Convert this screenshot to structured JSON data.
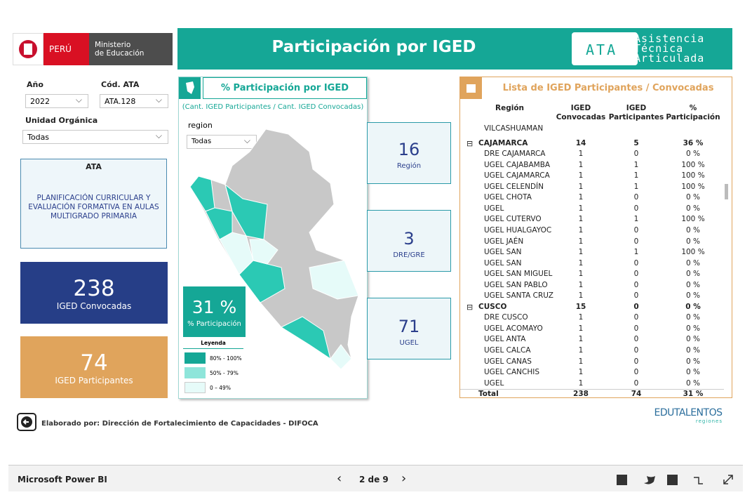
{
  "header": {
    "country": "PERÚ",
    "ministry": [
      "Ministerio",
      "de Educación"
    ],
    "title": "Participación por IGED",
    "ata_logo": "ATA",
    "ata_words": [
      "Asistencia",
      "Técnica",
      "Articulada"
    ]
  },
  "filters": [
    {
      "label": "Año",
      "value": "2022"
    },
    {
      "label": "Cód. ATA",
      "value": "ATA.128"
    },
    {
      "label": "Unidad Orgánica",
      "value": "Todas"
    }
  ],
  "ata_card": {
    "title": "ATA",
    "lines": [
      "PLANIFICACIÓN CURRICULAR Y",
      "EVALUACIÓN FORMATIVA EN AULAS",
      "MULTIGRADO PRIMARIA"
    ]
  },
  "kpis": [
    {
      "value": "238",
      "label": "IGED Convocadas"
    },
    {
      "value": "74",
      "label": "IGED Participantes"
    }
  ],
  "map_panel": {
    "title": "% Participación por IGED",
    "subtitle": "(Cant. IGED Participantes / Cant. IGED Convocadas)",
    "filter_label": "region",
    "filter_value": "Todas",
    "kpi_value": "31 %",
    "kpi_label": "% Participación",
    "legend_title": "Leyenda",
    "legend": [
      "80% - 100%",
      "50% - 79%",
      "0 – 49%"
    ]
  },
  "counts": [
    {
      "value": "16",
      "label": "Región"
    },
    {
      "value": "3",
      "label": "DRE/GRE"
    },
    {
      "value": "71",
      "label": "UGEL"
    }
  ],
  "table": {
    "title": "Lista de IGED Participantes / Convocadas",
    "columns": [
      [
        "Región"
      ],
      [
        "IGED",
        "Convocadas"
      ],
      [
        "IGED",
        "Participantes"
      ],
      [
        "%",
        "Participación"
      ]
    ],
    "rows": [
      {
        "cells": [
          "VILCASHUAMAN"
        ]
      },
      {
        "group": true,
        "cells": [
          "CAJAMARCA",
          "14",
          "5",
          "36 %"
        ]
      },
      {
        "cells": [
          "DRE CAJAMARCA",
          "1",
          "0",
          "0 %"
        ]
      },
      {
        "cells": [
          "UGEL CAJABAMBA",
          "1",
          "1",
          "100 %"
        ]
      },
      {
        "cells": [
          "UGEL CAJAMARCA",
          "1",
          "1",
          "100 %"
        ]
      },
      {
        "cells": [
          "UGEL CELENDÍN",
          "1",
          "1",
          "100 %"
        ]
      },
      {
        "cells": [
          "UGEL CHOTA",
          "1",
          "0",
          "0 %"
        ]
      },
      {
        "cells": [
          "UGEL",
          "1",
          "0",
          "0 %"
        ]
      },
      {
        "cells": [
          "UGEL CUTERVO",
          "1",
          "1",
          "100 %"
        ]
      },
      {
        "cells": [
          "UGEL HUALGAYOC",
          "1",
          "0",
          "0 %"
        ]
      },
      {
        "cells": [
          "UGEL JAÉN",
          "1",
          "0",
          "0 %"
        ]
      },
      {
        "cells": [
          "UGEL SAN",
          "1",
          "1",
          "100 %"
        ]
      },
      {
        "cells": [
          "UGEL SAN",
          "1",
          "0",
          "0 %"
        ]
      },
      {
        "cells": [
          "UGEL SAN MIGUEL",
          "1",
          "0",
          "0 %"
        ]
      },
      {
        "cells": [
          "UGEL SAN PABLO",
          "1",
          "0",
          "0 %"
        ]
      },
      {
        "cells": [
          "UGEL SANTA CRUZ",
          "1",
          "0",
          "0 %"
        ]
      },
      {
        "group": true,
        "cells": [
          "CUSCO",
          "15",
          "0",
          "0 %"
        ]
      },
      {
        "cells": [
          "DRE CUSCO",
          "1",
          "0",
          "0 %"
        ]
      },
      {
        "cells": [
          "UGEL ACOMAYO",
          "1",
          "0",
          "0 %"
        ]
      },
      {
        "cells": [
          "UGEL ANTA",
          "1",
          "0",
          "0 %"
        ]
      },
      {
        "cells": [
          "UGEL CALCA",
          "1",
          "0",
          "0 %"
        ]
      },
      {
        "cells": [
          "UGEL CANAS",
          "1",
          "0",
          "0 %"
        ]
      },
      {
        "cells": [
          "UGEL CANCHIS",
          "1",
          "0",
          "0 %"
        ]
      },
      {
        "cells": [
          "UGEL",
          "1",
          "0",
          "0 %"
        ]
      }
    ],
    "total": [
      "Total",
      "238",
      "74",
      "31 %"
    ]
  },
  "footer": {
    "credit": "Elaborado por: Dirección de Fortalecimiento de Capacidades - DIFOCA",
    "brand": "EDUTALENTOS",
    "brand_sub": "regiones"
  },
  "bottom_bar": {
    "app": "Microsoft Power BI",
    "page": "2 de 9"
  }
}
